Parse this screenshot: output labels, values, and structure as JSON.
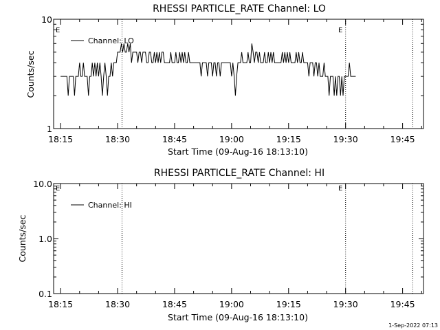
{
  "chart_data": [
    {
      "type": "line",
      "title": "RHESSI PARTICLE_RATE Channel: LO",
      "xlabel": "Start Time (09-Aug-16 18:13:10)",
      "ylabel": "Counts/sec",
      "yscale": "log",
      "ylim": [
        1,
        10
      ],
      "xlim": [
        "18:13:10",
        "19:50:30"
      ],
      "x_ticks": [
        "18:15",
        "18:30",
        "18:45",
        "19:00",
        "19:15",
        "19:30",
        "19:45"
      ],
      "y_ticks": [
        "1",
        "10"
      ],
      "legend": "top-left",
      "grid": false,
      "markers": [
        {
          "label": "E",
          "time": "18:13:10"
        },
        {
          "label": "E",
          "time": "19:31:00"
        }
      ],
      "dotted_lines": [
        "18:31:10",
        "19:30:00",
        "19:47:40"
      ],
      "series": [
        {
          "name": "Channel: LO",
          "color": "#000000",
          "x_start": "18:15:00",
          "step_seconds": 20,
          "values": [
            3,
            3,
            3,
            3,
            3,
            3,
            2,
            3,
            3,
            3,
            3,
            2,
            3,
            3,
            3,
            4,
            3,
            3,
            4,
            3,
            3,
            3,
            2,
            3,
            3,
            4,
            3,
            4,
            3,
            4,
            3,
            4,
            3,
            2,
            3,
            4,
            3,
            2,
            3,
            3,
            4,
            3,
            4,
            4,
            4,
            5,
            5,
            5,
            6,
            5,
            6,
            5,
            5,
            6,
            5,
            6,
            4,
            5,
            5,
            5,
            5,
            4,
            5,
            5,
            4,
            5,
            5,
            5,
            4,
            4,
            5,
            5,
            4,
            4,
            5,
            4,
            5,
            4,
            5,
            4,
            5,
            5,
            4,
            4,
            4,
            4,
            4,
            5,
            4,
            4,
            4,
            5,
            4,
            4,
            5,
            4,
            5,
            4,
            5,
            4,
            4,
            5,
            4,
            4,
            4,
            4,
            4,
            4,
            4,
            4,
            4,
            3,
            4,
            4,
            4,
            4,
            3,
            4,
            4,
            4,
            3,
            4,
            4,
            3,
            4,
            4,
            3,
            4,
            4,
            4,
            4,
            4,
            4,
            4,
            4,
            3,
            4,
            3,
            2,
            3,
            4,
            4,
            4,
            5,
            4,
            4,
            4,
            4,
            5,
            4,
            4,
            6,
            5,
            4,
            5,
            5,
            4,
            5,
            4,
            4,
            4,
            5,
            4,
            4,
            5,
            4,
            5,
            4,
            5,
            4,
            4,
            4,
            4,
            4,
            4,
            5,
            4,
            5,
            4,
            5,
            4,
            5,
            4,
            4,
            4,
            4,
            5,
            4,
            5,
            4,
            4,
            5,
            4,
            4,
            4,
            4,
            3,
            4,
            4,
            4,
            3,
            4,
            4,
            3,
            4,
            3,
            3,
            3,
            4,
            3,
            3,
            3,
            2,
            3,
            3,
            3,
            2,
            3,
            2,
            3,
            3,
            2,
            3,
            2,
            3,
            3,
            3,
            3,
            4,
            3,
            3,
            3,
            3,
            3
          ]
        }
      ]
    },
    {
      "type": "line",
      "title": "RHESSI PARTICLE_RATE Channel: HI",
      "xlabel": "Start Time (09-Aug-16 18:13:10)",
      "ylabel": "Counts/sec",
      "yscale": "log",
      "ylim": [
        0.1,
        10
      ],
      "xlim": [
        "18:13:10",
        "19:50:30"
      ],
      "x_ticks": [
        "18:15",
        "18:30",
        "18:45",
        "19:00",
        "19:15",
        "19:30",
        "19:45"
      ],
      "y_ticks": [
        "0.1",
        "1.0",
        "10.0"
      ],
      "legend": "top-left",
      "grid": false,
      "markers": [
        {
          "label": "E",
          "time": "18:13:10"
        },
        {
          "label": "E",
          "time": "19:31:00"
        }
      ],
      "dotted_lines": [
        "18:31:10",
        "19:30:00",
        "19:47:40"
      ],
      "series": [
        {
          "name": "Channel: HI",
          "color": "#000000",
          "values": []
        }
      ]
    }
  ],
  "footer": {
    "timestamp": "1-Sep-2022 07:13"
  }
}
